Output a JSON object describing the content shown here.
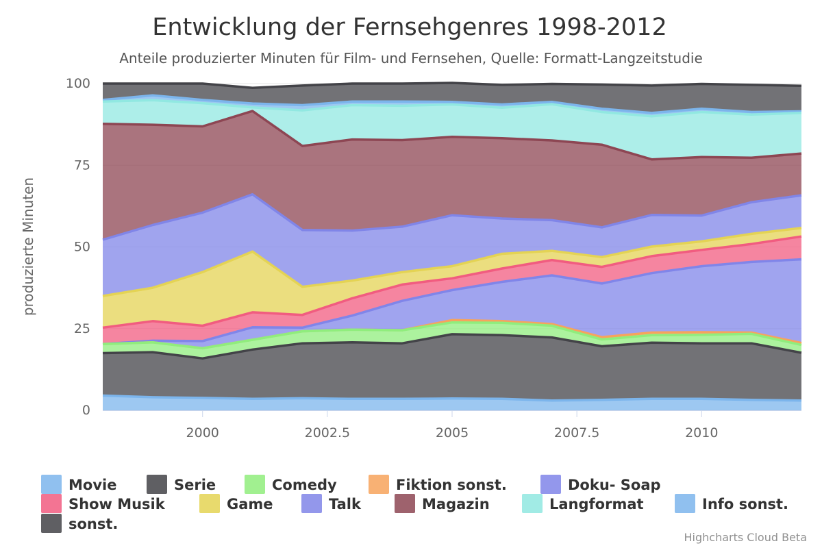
{
  "chart_data": {
    "type": "area",
    "stacking": "normal",
    "title": "Entwicklung der Fernsehgenres 1998-2012",
    "subtitle": "Anteile produzierter Minuten für Film- und Fernsehen, Quelle: Formatt-Langzeitstudie",
    "ylabel": "produzierte Minuten",
    "xlim": [
      1998,
      2012
    ],
    "ylim": [
      0,
      100
    ],
    "x_ticks": [
      "2000",
      "2002.5",
      "2005",
      "2007.5",
      "2010"
    ],
    "y_ticks": [
      "0",
      "25",
      "50",
      "75",
      "100"
    ],
    "grid": true,
    "legend_position": "bottom",
    "credits": "Highcharts Cloud Beta",
    "x": [
      1998,
      1999,
      2000,
      2001,
      2002,
      2003,
      2004,
      2005,
      2006,
      2007,
      2008,
      2009,
      2010,
      2011,
      2012
    ],
    "series": [
      {
        "name": "Movie",
        "color": "#7cb5ec",
        "values": [
          4.5,
          4.0,
          3.8,
          3.5,
          3.7,
          3.5,
          3.5,
          3.6,
          3.5,
          3.0,
          3.2,
          3.5,
          3.5,
          3.2,
          3.0
        ]
      },
      {
        "name": "Serie",
        "color": "#434348",
        "values": [
          13.0,
          13.8,
          12.1,
          15.1,
          16.8,
          17.3,
          17.0,
          19.7,
          19.5,
          19.3,
          16.4,
          17.2,
          17.0,
          17.3,
          14.6
        ]
      },
      {
        "name": "Comedy",
        "color": "#90ed7d",
        "values": [
          2.8,
          3.0,
          3.1,
          3.0,
          3.7,
          3.9,
          4.0,
          3.6,
          3.8,
          3.6,
          2.1,
          2.3,
          2.6,
          2.9,
          2.4
        ]
      },
      {
        "name": "Fiktion sonst.",
        "color": "#f7a35c",
        "values": [
          0,
          0,
          0,
          0,
          0,
          0,
          0,
          0.7,
          0.5,
          0.5,
          0.7,
          0.8,
          0.8,
          0.4,
          0.6
        ]
      },
      {
        "name": "Doku- Soap",
        "color": "#8085e9",
        "values": [
          0,
          0.5,
          2.2,
          3.8,
          1.1,
          4.3,
          9.0,
          9.2,
          12.0,
          14.9,
          16.4,
          18.2,
          20.2,
          21.6,
          25.6
        ]
      },
      {
        "name": "Show Musik",
        "color": "#f15c80",
        "values": [
          5.0,
          6.0,
          4.7,
          4.6,
          3.9,
          5.3,
          5.0,
          3.6,
          4.1,
          4.7,
          5.1,
          5.2,
          5.0,
          5.5,
          7.0
        ]
      },
      {
        "name": "Game",
        "color": "#e4d354",
        "values": [
          9.7,
          10.2,
          16.4,
          18.6,
          8.6,
          5.4,
          3.8,
          3.7,
          4.5,
          2.8,
          3.0,
          2.9,
          2.6,
          3.1,
          2.6
        ]
      },
      {
        "name": "Talk",
        "color": "#8085e8",
        "values": [
          17.2,
          19.2,
          18.2,
          17.5,
          17.4,
          15.3,
          13.9,
          15.6,
          10.8,
          9.4,
          9.1,
          9.7,
          7.9,
          9.7,
          10.0
        ]
      },
      {
        "name": "Magazin",
        "color": "#8d4653",
        "values": [
          35.5,
          30.7,
          26.4,
          25.5,
          25.7,
          27.9,
          26.5,
          24.0,
          24.6,
          24.4,
          25.3,
          17.0,
          17.9,
          13.6,
          12.8
        ]
      },
      {
        "name": "Langformat",
        "color": "#91e8e1",
        "values": [
          6.8,
          7.5,
          7.1,
          1.1,
          10.9,
          10.5,
          10.5,
          9.9,
          9.3,
          11.1,
          10.0,
          13.2,
          13.8,
          13.2,
          12.4
        ]
      },
      {
        "name": "Info sonst.",
        "color": "#7cb5ec",
        "values": [
          0.5,
          1.5,
          1.0,
          1.2,
          1.6,
          1.1,
          1.3,
          0.8,
          1.0,
          0.7,
          1.0,
          1.0,
          1.0,
          0.8,
          0.5
        ]
      },
      {
        "name": "sonst.",
        "color": "#434348",
        "values": [
          5.0,
          3.6,
          5.0,
          4.8,
          6.0,
          5.5,
          5.5,
          5.8,
          6.0,
          5.5,
          7.4,
          8.4,
          7.6,
          8.3,
          7.8
        ]
      }
    ]
  }
}
